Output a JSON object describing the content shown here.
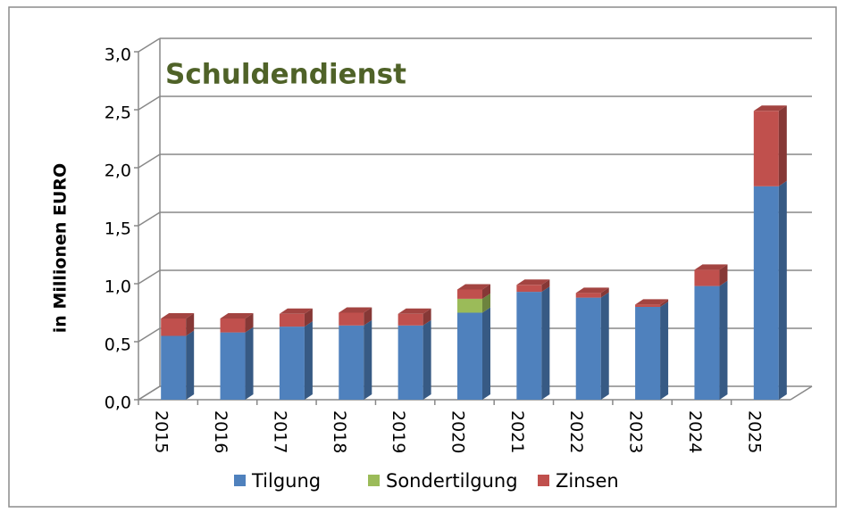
{
  "chart_data": {
    "type": "bar3d_stacked",
    "title": "Schuldendienst",
    "y_label": "in Millionen EURO",
    "categories": [
      "2015",
      "2016",
      "2017",
      "2018",
      "2019",
      "2020",
      "2021",
      "2022",
      "2023",
      "2024",
      "2025"
    ],
    "series": [
      {
        "name": "Tilgung",
        "color": "#4f81bd",
        "values": [
          0.55,
          0.58,
          0.63,
          0.64,
          0.64,
          0.75,
          0.93,
          0.88,
          0.8,
          0.98,
          1.84
        ]
      },
      {
        "name": "Sondertilgung",
        "color": "#9bbb59",
        "values": [
          0,
          0,
          0,
          0,
          0,
          0.12,
          0,
          0,
          0,
          0,
          0
        ]
      },
      {
        "name": "Zinsen",
        "color": "#c0504d",
        "values": [
          0.15,
          0.12,
          0.11,
          0.11,
          0.1,
          0.08,
          0.06,
          0.04,
          0.02,
          0.14,
          0.65
        ]
      }
    ],
    "ylim": [
      0,
      3
    ],
    "yticks": [
      {
        "value": 0,
        "label": "0,0"
      },
      {
        "value": 0.5,
        "label": "0,5"
      },
      {
        "value": 1,
        "label": "1,0"
      },
      {
        "value": 1.5,
        "label": "1,5"
      },
      {
        "value": 2,
        "label": "2,0"
      },
      {
        "value": 2.5,
        "label": "2,5"
      },
      {
        "value": 3,
        "label": "3,0"
      }
    ],
    "grid": true,
    "legend": "bottom"
  }
}
